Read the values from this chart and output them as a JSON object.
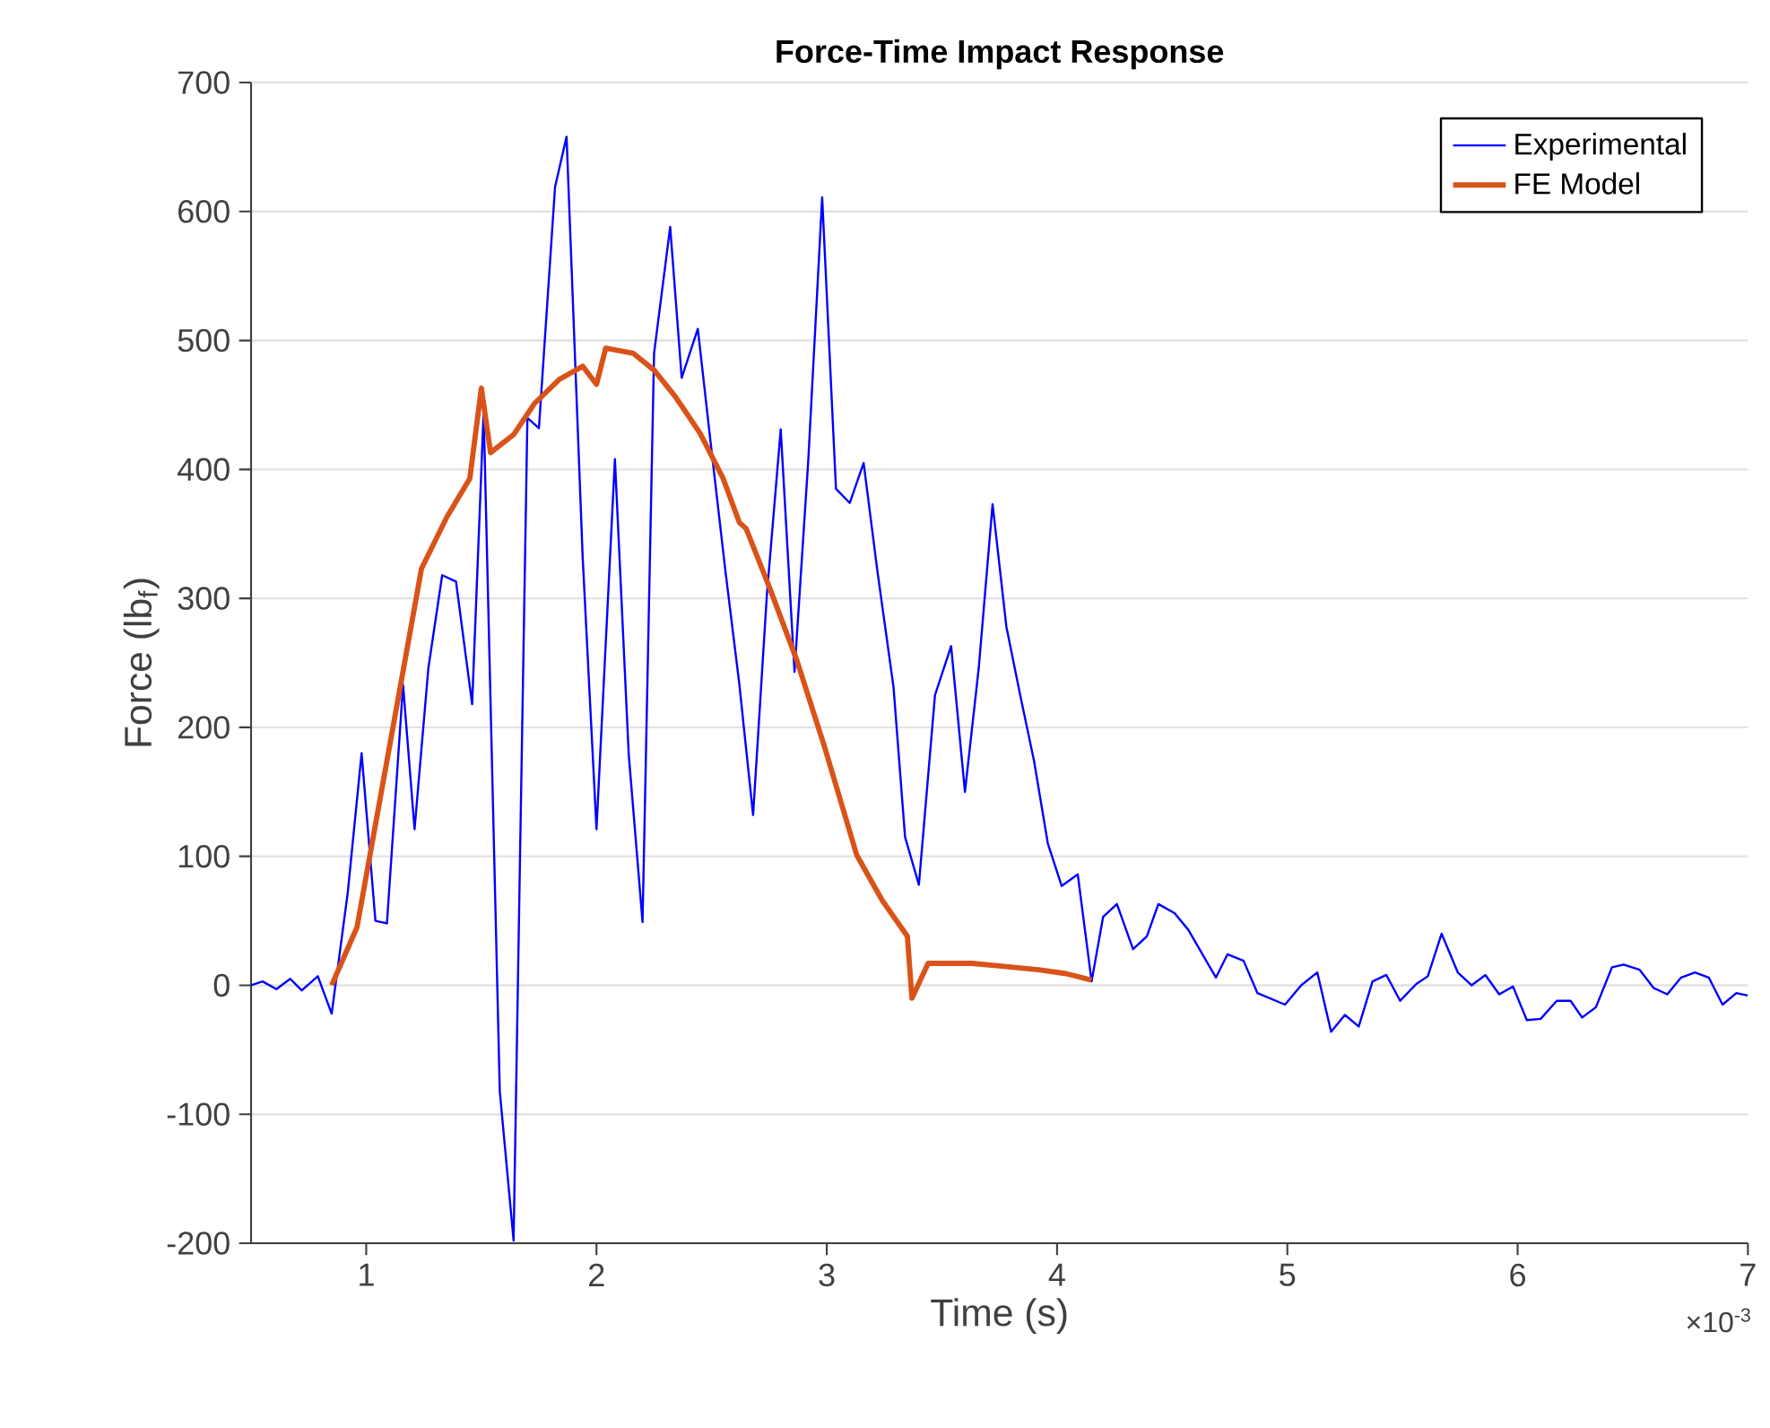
{
  "chart_data": {
    "type": "line",
    "title": "Force-Time Impact Response",
    "xlabel": "Time (s)",
    "ylabel": "Force (lb$_{f}$)",
    "xlim": [
      0.5,
      7
    ],
    "xticks": [
      1,
      2,
      3,
      4,
      5,
      6,
      7
    ],
    "ylim": [
      -200,
      700
    ],
    "yticks": [
      -200,
      -100,
      0,
      100,
      200,
      300,
      400,
      500,
      600,
      700
    ],
    "grid": "y",
    "legend": "top right",
    "marker": "none",
    "line_style": "solid",
    "annotations": [
      "×10$^{-3}$"
    ],
    "series": [
      {
        "name": "Experimental",
        "color": "#0000ff",
        "x": [
          0.5,
          0.55,
          0.61,
          0.67,
          0.72,
          0.79,
          0.85,
          0.92,
          0.98,
          1.04,
          1.09,
          1.16,
          1.21,
          1.27,
          1.33,
          1.39,
          1.46,
          1.51,
          1.58,
          1.64,
          1.7,
          1.75,
          1.82,
          1.87,
          1.94,
          2.0,
          2.08,
          2.14,
          2.2,
          2.25,
          2.32,
          2.37,
          2.44,
          2.5,
          2.56,
          2.62,
          2.68,
          2.74,
          2.8,
          2.86,
          2.92,
          2.98,
          3.04,
          3.1,
          3.16,
          3.22,
          3.29,
          3.34,
          3.4,
          3.47,
          3.54,
          3.6,
          3.66,
          3.72,
          3.78,
          3.84,
          3.9,
          3.96,
          4.02,
          4.09,
          4.15,
          4.2,
          4.26,
          4.33,
          4.39,
          4.44,
          4.51,
          4.57,
          4.69,
          4.74,
          4.81,
          4.87,
          4.99,
          5.06,
          5.13,
          5.19,
          5.25,
          5.31,
          5.37,
          5.43,
          5.49,
          5.56,
          5.61,
          5.67,
          5.74,
          5.8,
          5.86,
          5.92,
          5.98,
          6.04,
          6.1,
          6.17,
          6.23,
          6.28,
          6.34,
          6.41,
          6.46,
          6.53,
          6.59,
          6.65,
          6.71,
          6.77,
          6.83,
          6.89,
          6.95,
          7.0
        ],
        "values": [
          0,
          3,
          -3,
          5,
          -4,
          7,
          -22,
          72,
          180,
          50,
          48,
          233,
          121,
          246,
          318,
          313,
          218,
          445,
          -82,
          -198,
          440,
          432,
          619,
          658,
          332,
          121,
          408,
          179,
          49,
          490,
          588,
          471,
          509,
          414,
          321,
          234,
          132,
          303,
          431,
          243,
          408,
          611,
          385,
          374,
          405,
          321,
          231,
          115,
          78,
          225,
          263,
          150,
          246,
          373,
          278,
          225,
          174,
          110,
          77,
          86,
          3,
          53,
          63,
          28,
          38,
          63,
          56,
          43,
          6,
          24,
          19,
          -6,
          -15,
          0,
          10,
          -36,
          -23,
          -32,
          3,
          8,
          -12,
          1,
          7,
          40,
          10,
          0,
          8,
          -7,
          -1,
          -27,
          -26,
          -12,
          -12,
          -25,
          -17,
          14,
          16,
          12,
          -2,
          -7,
          6,
          10,
          6,
          -15,
          -6,
          -8
        ]
      },
      {
        "name": "FE Model",
        "color": "#d95319",
        "x": [
          0.85,
          0.96,
          1.24,
          1.35,
          1.45,
          1.5,
          1.54,
          1.64,
          1.73,
          1.84,
          1.94,
          2.0,
          2.04,
          2.16,
          2.25,
          2.34,
          2.45,
          2.55,
          2.62,
          2.65,
          2.75,
          2.87,
          2.99,
          3.13,
          3.24,
          3.35,
          3.37,
          3.44,
          3.63,
          3.75,
          3.92,
          4.04,
          4.15
        ],
        "values": [
          0,
          45,
          323,
          363,
          393,
          463,
          413,
          427,
          451,
          470,
          480,
          466,
          494,
          490,
          477,
          457,
          428,
          393,
          359,
          354,
          309,
          252,
          185,
          101,
          66,
          38,
          -10,
          17,
          17,
          15,
          12,
          9,
          4
        ]
      }
    ]
  }
}
